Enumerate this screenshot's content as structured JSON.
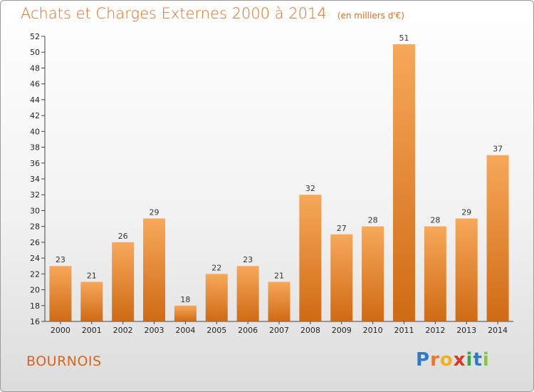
{
  "header": {
    "title": "Achats et Charges Externes 2000 à 2014",
    "unit": "(en milliers d'€)"
  },
  "footer": {
    "town": "BOURNOIS",
    "logo_letters": [
      "P",
      "r",
      "o",
      "x",
      "i",
      "t",
      "i"
    ],
    "logo_colors": [
      "#2e7bc4",
      "#e8772a",
      "#f0b020",
      "#d23a2a",
      "#3aa846",
      "#2e7bc4",
      "#8bc34a"
    ]
  },
  "chart_data": {
    "type": "bar",
    "title": "Achats et Charges Externes 2000 à 2014",
    "subtitle": "(en milliers d'€)",
    "xlabel": "",
    "ylabel": "",
    "categories": [
      "2000",
      "2001",
      "2002",
      "2003",
      "2004",
      "2005",
      "2006",
      "2007",
      "2008",
      "2009",
      "2010",
      "2011",
      "2012",
      "2013",
      "2014"
    ],
    "values": [
      23,
      21,
      26,
      29,
      18,
      22,
      23,
      21,
      32,
      27,
      28,
      51,
      28,
      29,
      37
    ],
    "ylim": [
      16,
      52
    ],
    "yticks": [
      16,
      18,
      20,
      22,
      24,
      26,
      28,
      30,
      32,
      34,
      36,
      38,
      40,
      42,
      44,
      46,
      48,
      50,
      52
    ],
    "grid": false,
    "bar_color_light": "#f7a85a",
    "bar_color_dark": "#cf6a14"
  }
}
